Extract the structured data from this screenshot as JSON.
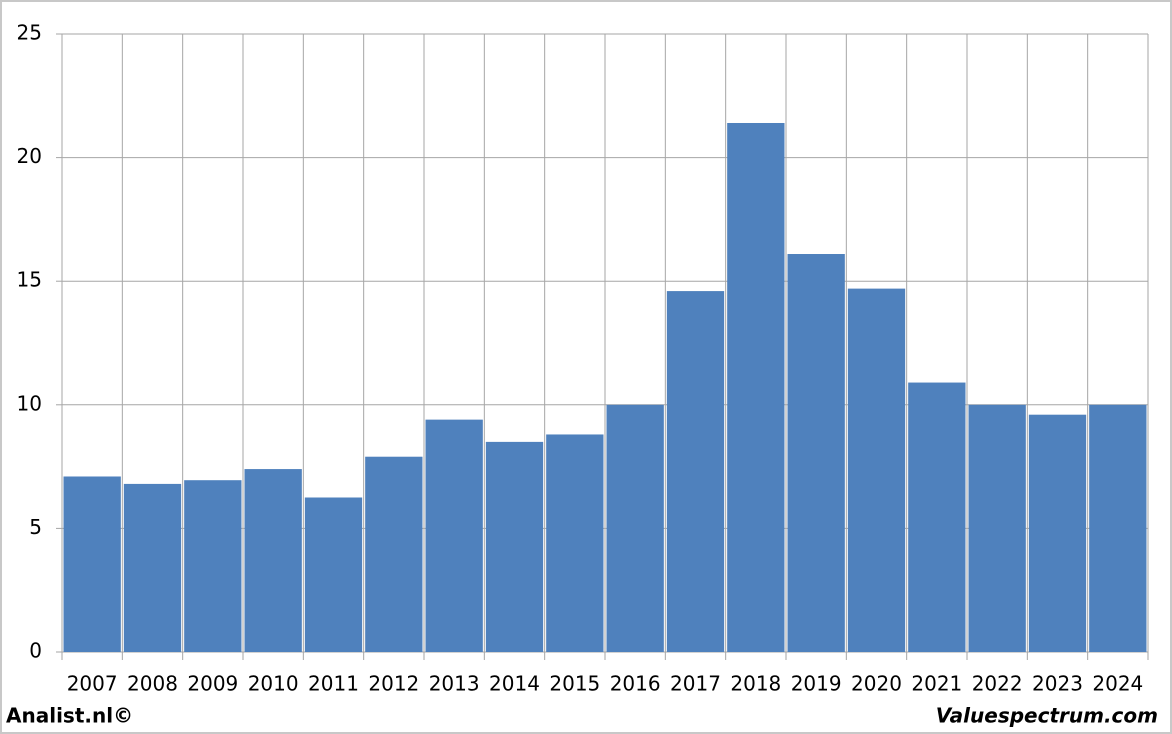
{
  "chart_data": {
    "type": "bar",
    "categories": [
      "2007",
      "2008",
      "2009",
      "2010",
      "2011",
      "2012",
      "2013",
      "2014",
      "2015",
      "2016",
      "2017",
      "2018",
      "2019",
      "2020",
      "2021",
      "2022",
      "2023",
      "2024"
    ],
    "values": [
      7.1,
      6.8,
      6.95,
      7.4,
      6.25,
      7.9,
      9.4,
      8.5,
      8.8,
      10.0,
      14.6,
      21.4,
      16.1,
      14.7,
      10.9,
      10.0,
      9.6,
      10.0
    ],
    "color": "#4f81bd",
    "ylim": [
      0,
      25
    ],
    "yticks": [
      0,
      5,
      10,
      15,
      20,
      25
    ],
    "grid": true,
    "source_left": "Analist.nl©",
    "source_right": "Valuespectrum.com"
  }
}
